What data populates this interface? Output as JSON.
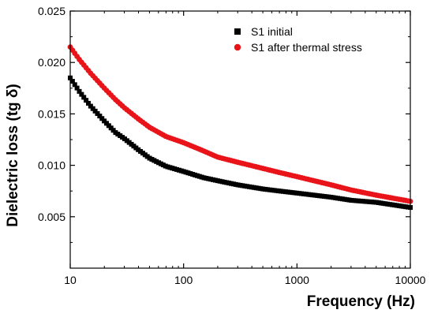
{
  "chart_data": {
    "type": "scatter",
    "title": "",
    "xlabel": "Frequency (Hz)",
    "ylabel": "Dielectric loss (tg δ)",
    "x_scale": "log",
    "xlim": [
      10,
      10000
    ],
    "ylim": [
      0,
      0.025
    ],
    "x_ticks": [
      10,
      100,
      1000,
      10000
    ],
    "x_tick_labels": [
      "10",
      "100",
      "1000",
      "10000"
    ],
    "y_ticks": [
      0.005,
      0.01,
      0.015,
      0.02,
      0.025
    ],
    "y_tick_labels": [
      "0.005",
      "0.010",
      "0.015",
      "0.020",
      "0.025"
    ],
    "grid": false,
    "legend_position": "top-right",
    "series": [
      {
        "name": "S1 initial",
        "marker": "square",
        "color": "#000000",
        "x": [
          10,
          12,
          15,
          20,
          25,
          30,
          40,
          50,
          70,
          100,
          150,
          200,
          300,
          500,
          700,
          1000,
          2000,
          3000,
          5000,
          10000
        ],
        "y": [
          0.0185,
          0.0172,
          0.0158,
          0.0143,
          0.0132,
          0.0126,
          0.0115,
          0.0107,
          0.0099,
          0.0094,
          0.0088,
          0.0085,
          0.0081,
          0.0077,
          0.0075,
          0.0073,
          0.0069,
          0.0066,
          0.0064,
          0.0059
        ]
      },
      {
        "name": "S1 after thermal stress",
        "marker": "circle",
        "color": "#e8141a",
        "x": [
          10,
          12,
          15,
          20,
          25,
          30,
          40,
          50,
          70,
          100,
          150,
          200,
          300,
          500,
          700,
          1000,
          2000,
          3000,
          5000,
          10000
        ],
        "y": [
          0.0215,
          0.0203,
          0.019,
          0.0175,
          0.0164,
          0.0156,
          0.0145,
          0.0137,
          0.0128,
          0.0122,
          0.0114,
          0.0108,
          0.0103,
          0.0097,
          0.0093,
          0.0089,
          0.0081,
          0.0076,
          0.0071,
          0.0065
        ]
      }
    ]
  }
}
